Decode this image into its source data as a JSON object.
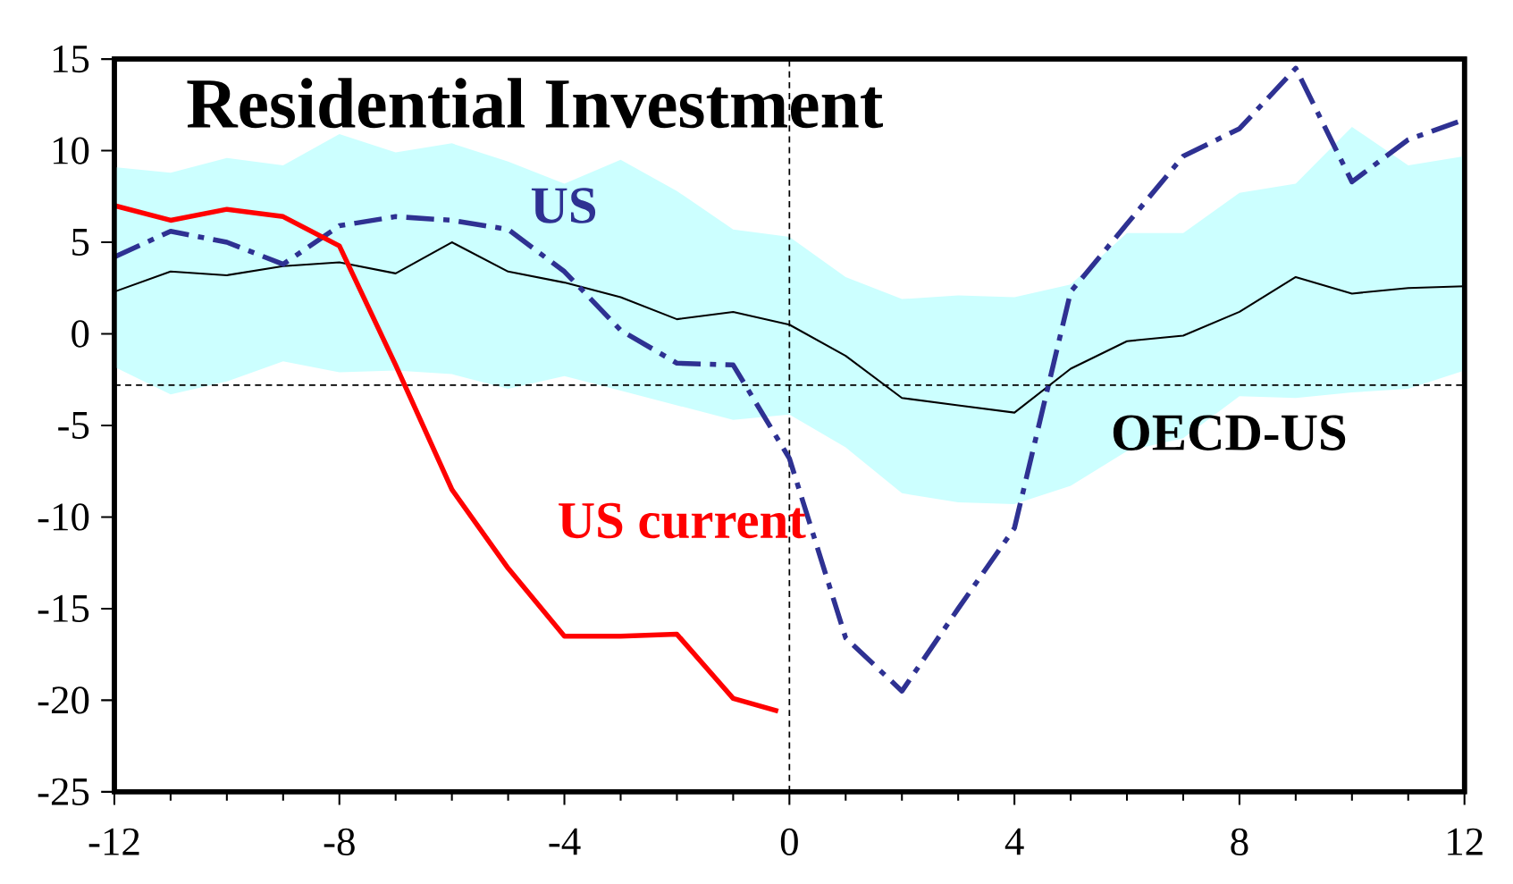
{
  "chart_data": {
    "type": "line",
    "title": "Residential Investment",
    "x": [
      -12,
      -11,
      -10,
      -9,
      -8,
      -7,
      -6,
      -5,
      -4,
      -3,
      -2,
      -1,
      0,
      1,
      2,
      3,
      4,
      5,
      6,
      7,
      8,
      9,
      10,
      11,
      12
    ],
    "series": [
      {
        "name": "OECD-US",
        "color": "#000000",
        "values": [
          2.3,
          3.4,
          3.2,
          3.7,
          3.9,
          3.3,
          5.0,
          3.4,
          2.8,
          2.0,
          0.8,
          1.2,
          0.5,
          -1.2,
          -3.5,
          -3.9,
          -4.3,
          -1.9,
          -0.4,
          -0.1,
          1.2,
          3.1,
          2.2,
          2.5,
          2.6
        ],
        "lower": [
          -1.8,
          -3.3,
          -2.6,
          -1.5,
          -2.1,
          -2.0,
          -2.2,
          -3.0,
          -2.3,
          -3.1,
          -3.9,
          -4.7,
          -4.4,
          -6.2,
          -8.7,
          -9.2,
          -9.3,
          -8.3,
          -6.4,
          -5.7,
          -3.4,
          -3.5,
          -3.2,
          -3.0,
          -2.0
        ],
        "upper": [
          9.1,
          8.8,
          9.6,
          9.2,
          10.9,
          9.9,
          10.4,
          9.4,
          8.2,
          9.5,
          7.8,
          5.7,
          5.3,
          3.1,
          1.9,
          2.1,
          2.0,
          2.7,
          5.5,
          5.5,
          7.7,
          8.2,
          11.3,
          9.2,
          9.7
        ]
      },
      {
        "name": "US",
        "color": "#2e3192",
        "line_style": "dashed",
        "values": [
          4.2,
          5.6,
          5.0,
          3.8,
          5.9,
          6.4,
          6.2,
          5.7,
          3.4,
          0.2,
          -1.6,
          -1.7,
          -6.8,
          -16.6,
          -19.5,
          -15.0,
          -10.6,
          2.3,
          6.0,
          9.7,
          11.2,
          14.5,
          8.3,
          10.6,
          11.7
        ]
      },
      {
        "name": "US current",
        "color": "#ff0000",
        "x": [
          -12,
          -11,
          -10,
          -9,
          -8,
          -7,
          -6,
          -5,
          -4,
          -3,
          -2,
          -1,
          -0.2
        ],
        "values": [
          7.0,
          6.2,
          6.8,
          6.4,
          4.8,
          -1.7,
          -8.5,
          -12.8,
          -16.5,
          -16.5,
          -16.4,
          -19.9,
          -20.6
        ]
      }
    ],
    "xlim": [
      -12,
      12
    ],
    "ylim": [
      -25,
      15
    ],
    "xticks": [
      -12,
      -8,
      -4,
      0,
      4,
      8,
      12
    ],
    "yticks": [
      -25,
      -20,
      -15,
      -10,
      -5,
      0,
      5,
      10,
      15
    ],
    "ref_lines": [
      {
        "axis": "x",
        "value": 0,
        "line_style": "dashed"
      },
      {
        "axis": "y",
        "value": -2.8,
        "line_style": "dashed"
      }
    ]
  }
}
